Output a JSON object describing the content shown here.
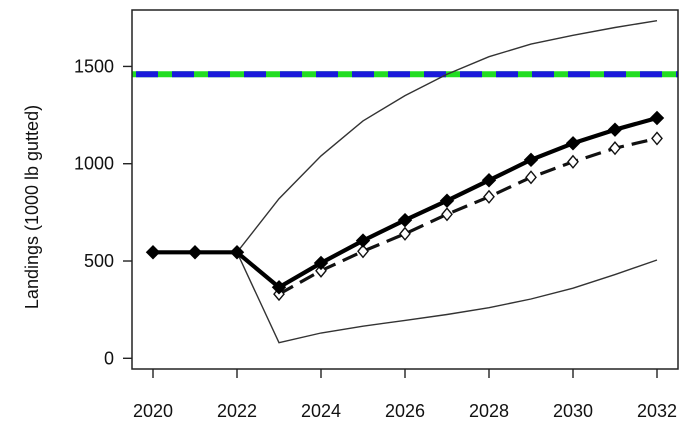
{
  "chart_data": {
    "type": "line",
    "title": "",
    "xlabel": "",
    "ylabel": "Landings (1000 lb gutted)",
    "xlim": [
      2019.5,
      2032.5
    ],
    "ylim": [
      -55,
      1790
    ],
    "x_ticks": [
      "2020",
      "2022",
      "2024",
      "2026",
      "2028",
      "2030",
      "2032"
    ],
    "y_ticks": [
      "0",
      "500",
      "1000",
      "1500"
    ],
    "x_tick_values": [
      2020,
      2022,
      2024,
      2026,
      2028,
      2030,
      2032
    ],
    "y_tick_values": [
      0,
      500,
      1000,
      1500
    ],
    "grid": false,
    "legend": "none",
    "series": [
      {
        "style": "thin-solid",
        "color": "#333333",
        "x": [
          2020,
          2022,
          2023,
          2024,
          2025,
          2026,
          2027,
          2028,
          2029,
          2030,
          2031,
          2032
        ],
        "values": [
          545,
          545,
          80,
          130,
          165,
          195,
          225,
          260,
          305,
          360,
          430,
          505
        ]
      },
      {
        "style": "thin-solid",
        "color": "#333333",
        "x": [
          2020,
          2022,
          2023,
          2024,
          2025,
          2026,
          2027,
          2028,
          2029,
          2030,
          2031,
          2032
        ],
        "values": [
          545,
          545,
          820,
          1040,
          1220,
          1350,
          1460,
          1550,
          1615,
          1660,
          1700,
          1735
        ]
      },
      {
        "style": "dashed",
        "marker": "open-diamond",
        "color": "#111111",
        "x": [
          2023,
          2024,
          2025,
          2026,
          2027,
          2028,
          2029,
          2030,
          2031,
          2032
        ],
        "values": [
          330,
          450,
          550,
          640,
          740,
          830,
          930,
          1010,
          1080,
          1130
        ]
      },
      {
        "style": "thick-solid",
        "marker": "filled-diamond",
        "color": "#000000",
        "x": [
          2020,
          2021,
          2022,
          2023,
          2024,
          2025,
          2026,
          2027,
          2028,
          2029,
          2030,
          2031,
          2032
        ],
        "values": [
          545,
          545,
          545,
          365,
          490,
          605,
          710,
          810,
          915,
          1020,
          1105,
          1175,
          1235
        ]
      }
    ],
    "reference_lines": [
      {
        "y": 1460,
        "style": "dashed",
        "colors": [
          "#22dd22",
          "#1a1adb"
        ]
      }
    ]
  }
}
